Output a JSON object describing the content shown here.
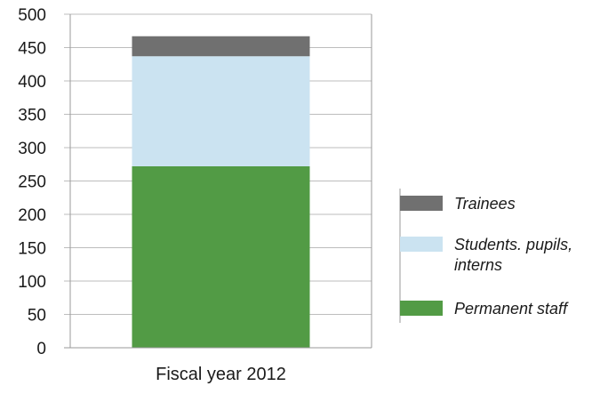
{
  "chart_data": {
    "type": "bar",
    "stacked": true,
    "categories": [
      "Fiscal year 2012"
    ],
    "series": [
      {
        "name": "Permanent staff",
        "values": [
          272
        ],
        "color": "#529B45"
      },
      {
        "name": "Students. pupils, interns",
        "values": [
          165
        ],
        "color": "#CBE3F1"
      },
      {
        "name": "Trainees",
        "values": [
          30
        ],
        "color": "#707070"
      }
    ],
    "legend_order": [
      "Trainees",
      "Students. pupils, interns",
      "Permanent staff"
    ],
    "legend_position": "right",
    "ylim": [
      0,
      500
    ],
    "yticks": [
      0,
      50,
      100,
      150,
      200,
      250,
      300,
      350,
      400,
      450,
      500
    ],
    "grid": true,
    "title": "",
    "xlabel": "",
    "ylabel": ""
  }
}
